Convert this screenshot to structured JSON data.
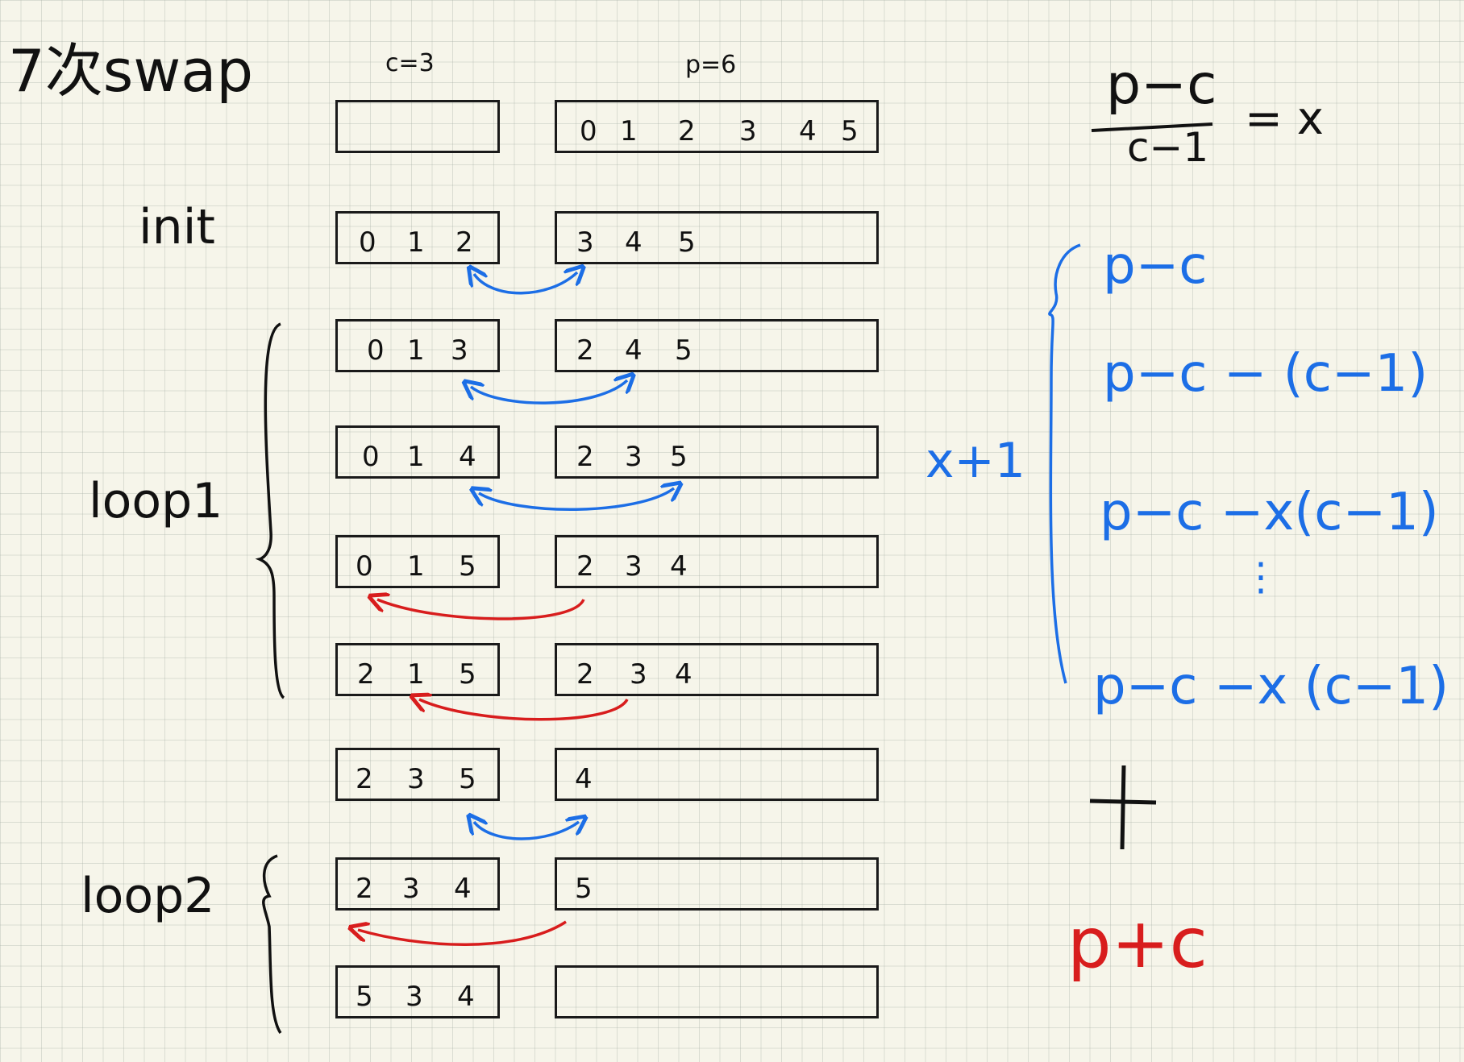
{
  "title": "7次swap",
  "c_label": "c=3",
  "p_label": "p=6",
  "section_labels": {
    "init": "init",
    "loop1": "loop1",
    "loop2": "loop2"
  },
  "header_row": {
    "c": [],
    "p": [
      "0",
      "1",
      "2",
      "3",
      "4",
      "5"
    ]
  },
  "rows": [
    {
      "c": [
        "0",
        "1",
        "2"
      ],
      "p": [
        "3",
        "4",
        "5"
      ]
    },
    {
      "c": [
        "0",
        "1",
        "3"
      ],
      "p": [
        "2",
        "4",
        "5"
      ]
    },
    {
      "c": [
        "0",
        "1",
        "4"
      ],
      "p": [
        "2",
        "3",
        "5"
      ]
    },
    {
      "c": [
        "0",
        "1",
        "5"
      ],
      "p": [
        "2",
        "3",
        "4"
      ]
    },
    {
      "c": [
        "2",
        "1",
        "5"
      ],
      "p": [
        "2",
        "3",
        "4"
      ]
    },
    {
      "c": [
        "2",
        "3",
        "5"
      ],
      "p": [
        "4"
      ]
    },
    {
      "c": [
        "2",
        "3",
        "4"
      ],
      "p": [
        "5"
      ]
    },
    {
      "c": [
        "5",
        "3",
        "4"
      ],
      "p": []
    }
  ],
  "swap_arrows": [
    {
      "color": "blue",
      "between": "init-row1"
    },
    {
      "color": "blue",
      "between": "row1-row2"
    },
    {
      "color": "blue",
      "between": "row2-row3"
    },
    {
      "color": "red",
      "between": "row3-row4"
    },
    {
      "color": "red",
      "between": "row4-row5"
    },
    {
      "color": "blue",
      "between": "row5-row6"
    },
    {
      "color": "red",
      "between": "row6-row7"
    }
  ],
  "formula_top": {
    "numerator": "p−c",
    "denominator": "c−1",
    "result": "= x"
  },
  "brace_label": "x+1",
  "series": [
    "p−c",
    "p−c  −  (c−1)",
    "p−c  −x(c−1)",
    "⋮",
    "p−c  −x (c−1)"
  ],
  "plus": "+",
  "final_term": "p+c",
  "colors": {
    "ink": "#111111",
    "blue": "#1c6ee6",
    "red": "#d81d1d",
    "paper": "#f6f5ea"
  }
}
